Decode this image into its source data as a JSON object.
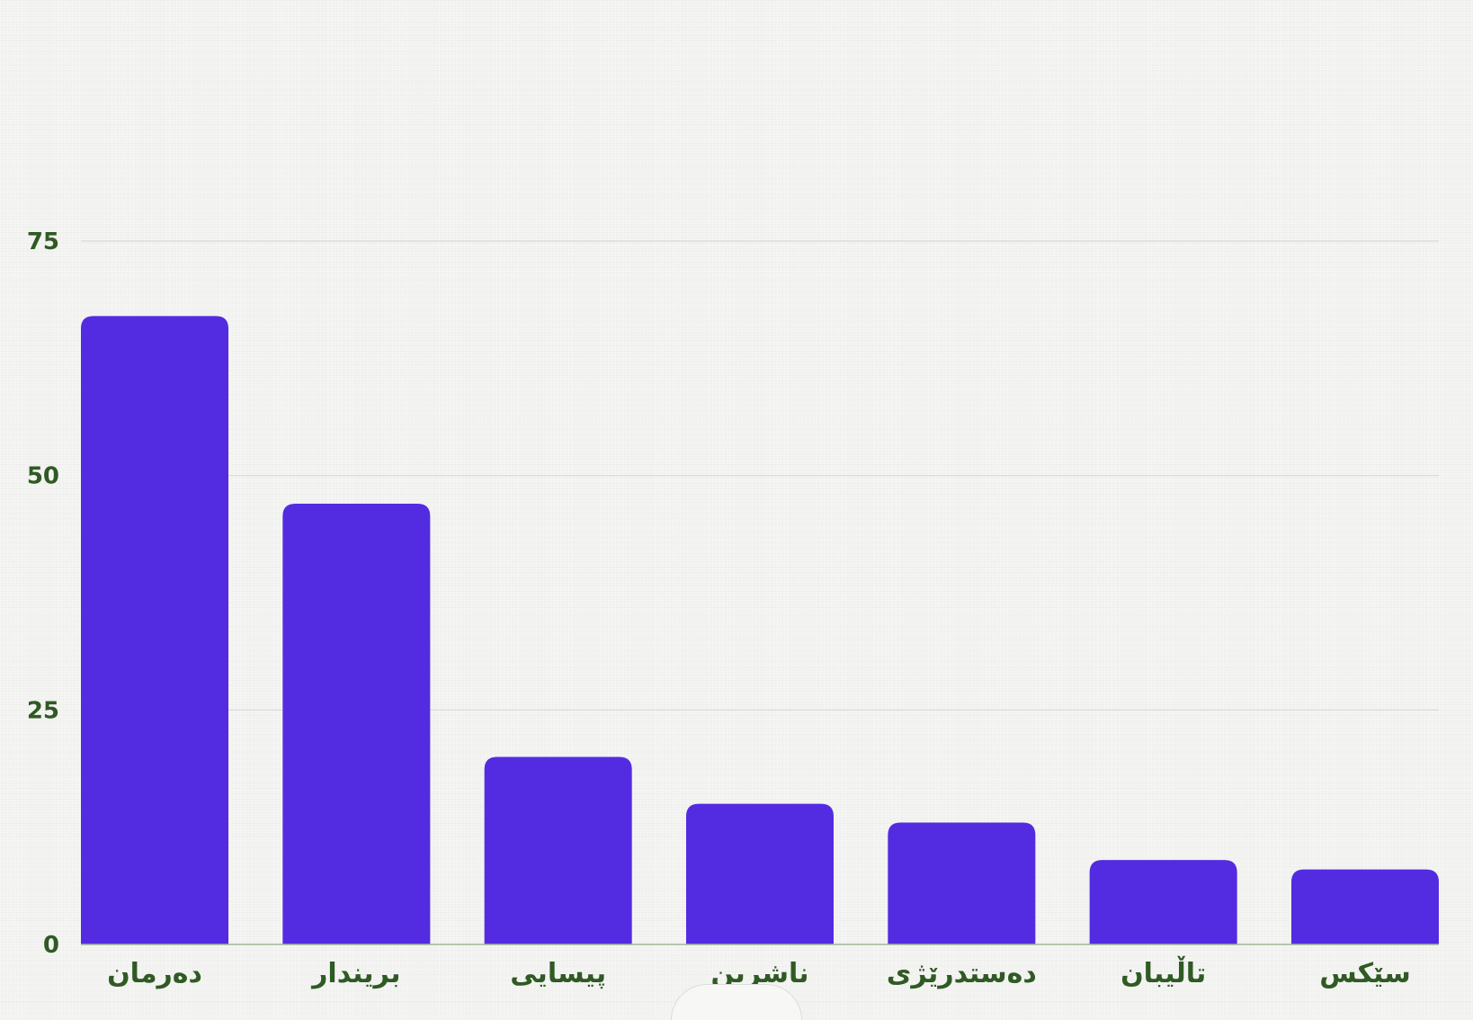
{
  "chart_data": {
    "type": "bar",
    "categories": [
      "دەرمان",
      "بریندار",
      "پیسایی",
      "ناشرین",
      "دەستدرێژی",
      "تاڵیبان",
      "سێکس"
    ],
    "values": [
      67,
      47,
      20,
      15,
      13,
      9,
      8
    ],
    "ylim": [
      0,
      75
    ],
    "yticks": [
      0,
      25,
      50,
      75
    ],
    "grid": true,
    "bar_color": "#532ce1",
    "gridline_color": "#d8d8d8",
    "baseline_color": "#9fb895",
    "label_color": "#2f5a24",
    "title": "",
    "xlabel": "",
    "ylabel": ""
  }
}
